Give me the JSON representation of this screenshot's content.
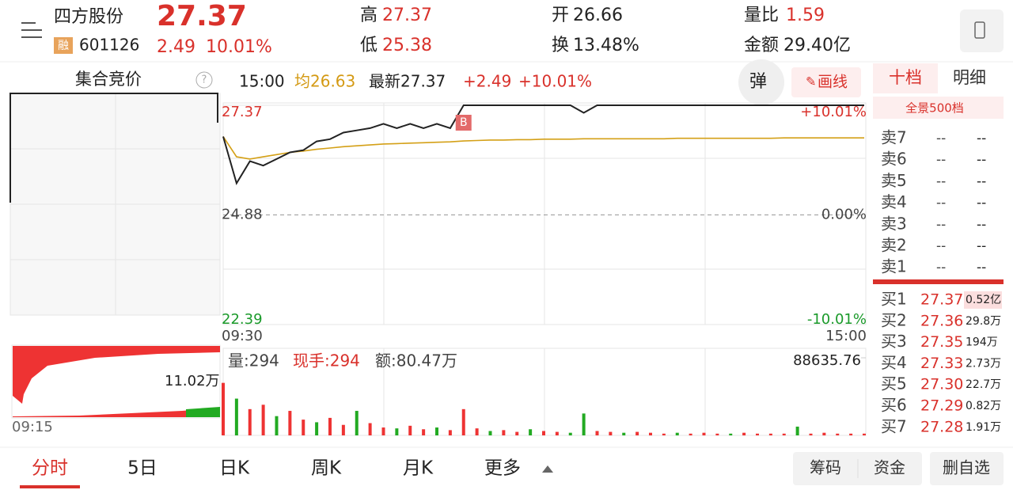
{
  "header": {
    "name": "四方股份",
    "price": "27.37",
    "change": "2.49",
    "pct": "10.01%",
    "badge": "融",
    "code": "601126",
    "high_label": "高",
    "high": "27.37",
    "low_label": "低",
    "low": "25.38",
    "open_label": "开",
    "open": "26.66",
    "turnover_label": "换",
    "turnover": "13.48%",
    "ratio_label": "量比",
    "ratio": "1.59",
    "amount_label": "金额",
    "amount": "29.40亿"
  },
  "chart_header": {
    "auction": "集合竞价",
    "help": "?",
    "time": "15:00",
    "avg": "均26.63",
    "latest": "最新27.37",
    "change": "+2.49",
    "pct": "+10.01%",
    "pop": "弹",
    "draw": "画线"
  },
  "intraday": {
    "ylim": [
      22.39,
      27.37
    ],
    "yticks": [
      27.37,
      24.88,
      22.39
    ],
    "pct_labels": [
      "+10.01%",
      "0.00%",
      "-10.01%"
    ],
    "x_labels": [
      "09:30",
      "15:00"
    ],
    "marker": "B",
    "price_color": "#222222",
    "avg_color": "#d4a017",
    "price": [
      26.66,
      25.6,
      26.1,
      26.0,
      26.15,
      26.3,
      26.35,
      26.55,
      26.6,
      26.75,
      26.8,
      26.85,
      26.95,
      26.85,
      26.95,
      26.85,
      26.95,
      26.85,
      27.37,
      27.37,
      27.37,
      27.37,
      27.37,
      27.37,
      27.37,
      27.37,
      27.37,
      27.2,
      27.37,
      27.37,
      27.37,
      27.37,
      27.37,
      27.37,
      27.37,
      27.37,
      27.37,
      27.37,
      27.37,
      27.37,
      27.37,
      27.37,
      27.37,
      27.37,
      27.37,
      27.37,
      27.37,
      27.37,
      27.37
    ],
    "avg": [
      26.66,
      26.2,
      26.15,
      26.2,
      26.25,
      26.3,
      26.33,
      26.37,
      26.4,
      26.43,
      26.45,
      26.47,
      26.49,
      26.5,
      26.51,
      26.52,
      26.53,
      26.54,
      26.56,
      26.57,
      26.58,
      26.58,
      26.59,
      26.59,
      26.6,
      26.6,
      26.6,
      26.61,
      26.61,
      26.61,
      26.61,
      26.61,
      26.61,
      26.61,
      26.62,
      26.62,
      26.62,
      26.62,
      26.62,
      26.62,
      26.62,
      26.62,
      26.63,
      26.63,
      26.63,
      26.63,
      26.63,
      26.63,
      26.63
    ]
  },
  "volume": {
    "ylim": [
      0,
      88635.76
    ],
    "yticks": [
      88635.76
    ],
    "info": [
      "量:294",
      "现手:294",
      "额:80.47万"
    ],
    "left_label": "11.02万",
    "left_time": "09:15",
    "values": [
      60000,
      42000,
      30000,
      35000,
      22000,
      28000,
      18000,
      15000,
      20000,
      12000,
      28000,
      14000,
      9000,
      8000,
      11000,
      7000,
      9000,
      6000,
      30000,
      8000,
      5000,
      6000,
      4000,
      7000,
      5000,
      4000,
      3000,
      25000,
      5000,
      4000,
      3000,
      4000,
      3000,
      2000,
      3000,
      2000,
      3000,
      2000,
      2000,
      3000,
      2000,
      2000,
      2000,
      10000,
      2000,
      3000,
      2000,
      2000,
      2000
    ],
    "colors": [
      "#e33",
      "#2a2",
      "#e33",
      "#e33",
      "#2a2",
      "#e33",
      "#e33",
      "#2a2",
      "#e33",
      "#e33",
      "#2a2",
      "#e33",
      "#e33",
      "#2a2",
      "#e33",
      "#e33",
      "#2a2",
      "#e33",
      "#e33",
      "#e33",
      "#2a2",
      "#e33",
      "#e33",
      "#2a2",
      "#e33",
      "#e33",
      "#2a2",
      "#2a2",
      "#e33",
      "#e33",
      "#2a2",
      "#e33",
      "#e33",
      "#e33",
      "#2a2",
      "#e33",
      "#e33",
      "#e33",
      "#2a2",
      "#e33",
      "#e33",
      "#e33",
      "#e33",
      "#2a2",
      "#e33",
      "#e33",
      "#e33",
      "#e33",
      "#e33"
    ]
  },
  "order_book": {
    "tabs": [
      "十档",
      "明细"
    ],
    "panorama": "全景500档",
    "sell": [
      {
        "label": "卖7",
        "price": "--",
        "vol": "--"
      },
      {
        "label": "卖6",
        "price": "--",
        "vol": "--"
      },
      {
        "label": "卖5",
        "price": "--",
        "vol": "--"
      },
      {
        "label": "卖4",
        "price": "--",
        "vol": "--"
      },
      {
        "label": "卖3",
        "price": "--",
        "vol": "--"
      },
      {
        "label": "卖2",
        "price": "--",
        "vol": "--"
      },
      {
        "label": "卖1",
        "price": "--",
        "vol": "--"
      }
    ],
    "buy": [
      {
        "label": "买1",
        "price": "27.37",
        "vol": "0.52亿"
      },
      {
        "label": "买2",
        "price": "27.36",
        "vol": "29.8万"
      },
      {
        "label": "买3",
        "price": "27.35",
        "vol": "194万"
      },
      {
        "label": "买4",
        "price": "27.33",
        "vol": "2.73万"
      },
      {
        "label": "买5",
        "price": "27.30",
        "vol": "22.7万"
      },
      {
        "label": "买6",
        "price": "27.29",
        "vol": "0.82万"
      },
      {
        "label": "买7",
        "price": "27.28",
        "vol": "1.91万"
      }
    ]
  },
  "tabs": [
    "分时",
    "5日",
    "日K",
    "周K",
    "月K",
    "更多"
  ],
  "buttons": [
    "筹码",
    "资金",
    "删自选"
  ]
}
